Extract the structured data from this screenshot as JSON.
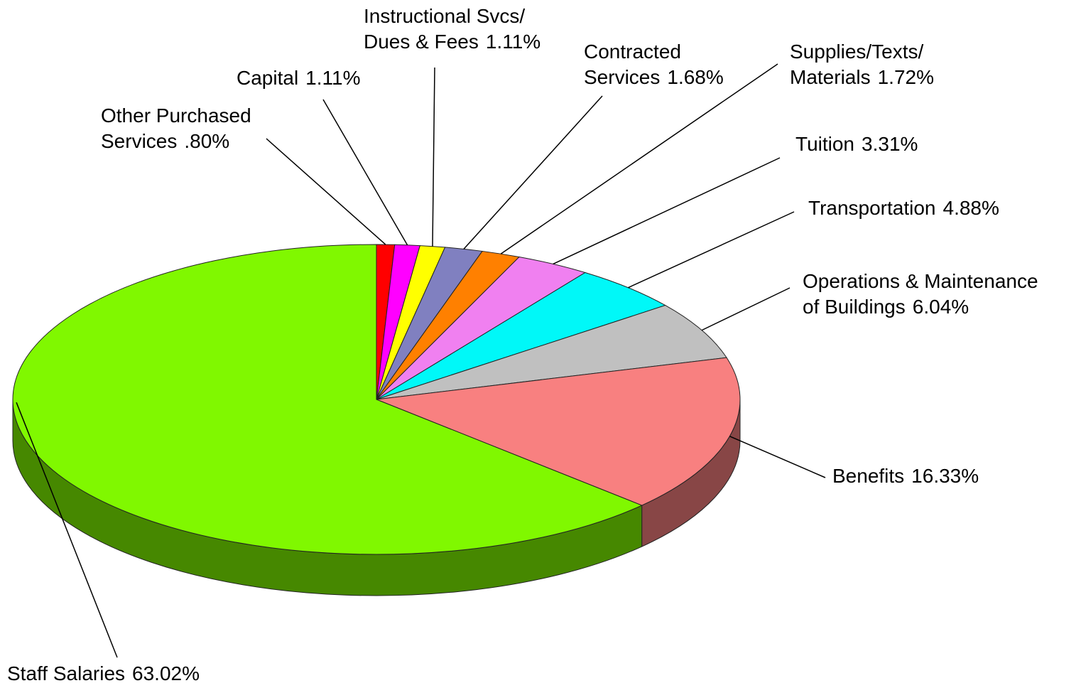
{
  "chart_data": {
    "type": "pie",
    "categories": [
      "Other Purchased\nServices",
      "Capital",
      "Instructional Svcs/\nDues & Fees",
      "Contracted\nServices",
      "Supplies/Texts/\nMaterials",
      "Tuition",
      "Transportation",
      "Operations & Maintenance\nof Buildings",
      "Benefits",
      "Staff Salaries"
    ],
    "values": [
      0.8,
      1.11,
      1.11,
      1.68,
      1.72,
      3.31,
      4.88,
      6.04,
      16.33,
      63.02
    ],
    "value_labels": [
      ".80%",
      "1.11%",
      "1.11%",
      "1.68%",
      "1.72%",
      "3.31%",
      "4.88%",
      "6.04%",
      "16.33%",
      "63.02%"
    ],
    "colors": [
      "#ff0000",
      "#ff00ff",
      "#ffff00",
      "#8080c0",
      "#ff8000",
      "#f080f0",
      "#00f8f8",
      "#c0c0c0",
      "#f88080",
      "#80f800"
    ]
  }
}
